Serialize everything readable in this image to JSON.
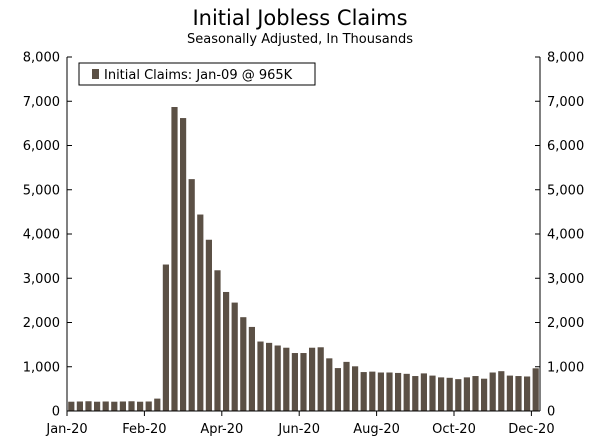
{
  "chart_data": {
    "type": "bar",
    "title": "Initial Jobless Claims",
    "subtitle": "Seasonally Adjusted, In Thousands",
    "ylim": [
      0,
      8000
    ],
    "yticks": [
      "0",
      "1,000",
      "2,000",
      "3,000",
      "4,000",
      "5,000",
      "6,000",
      "7,000",
      "8,000"
    ],
    "yticks_right": [
      "0",
      "1,000",
      "2,000",
      "3,000",
      "4,000",
      "5,000",
      "6,000",
      "7,000",
      "8,000"
    ],
    "xtick_labels": [
      "Jan-20",
      "Feb-20",
      "Apr-20",
      "Jun-20",
      "Aug-20",
      "Oct-20",
      "Dec-20"
    ],
    "xtick_positions": [
      0,
      9,
      18,
      27,
      36,
      45,
      54
    ],
    "legend": "Initial Claims: Jan-09 @ 965K",
    "legend_position": "top-left",
    "bar_color": "#5b5045",
    "grid": false,
    "series": [
      {
        "values": [
          210,
          215,
          220,
          210,
          215,
          210,
          215,
          220,
          210,
          215,
          280,
          3310,
          6870,
          6620,
          5240,
          4440,
          3870,
          3180,
          2690,
          2450,
          2120,
          1900,
          1570,
          1540,
          1480,
          1430,
          1310,
          1310,
          1430,
          1440,
          1190,
          970,
          1110,
          1010,
          880,
          890,
          870,
          870,
          860,
          840,
          790,
          850,
          800,
          760,
          750,
          720,
          760,
          790,
          730,
          870,
          900,
          800,
          790,
          780,
          965
        ]
      }
    ]
  }
}
